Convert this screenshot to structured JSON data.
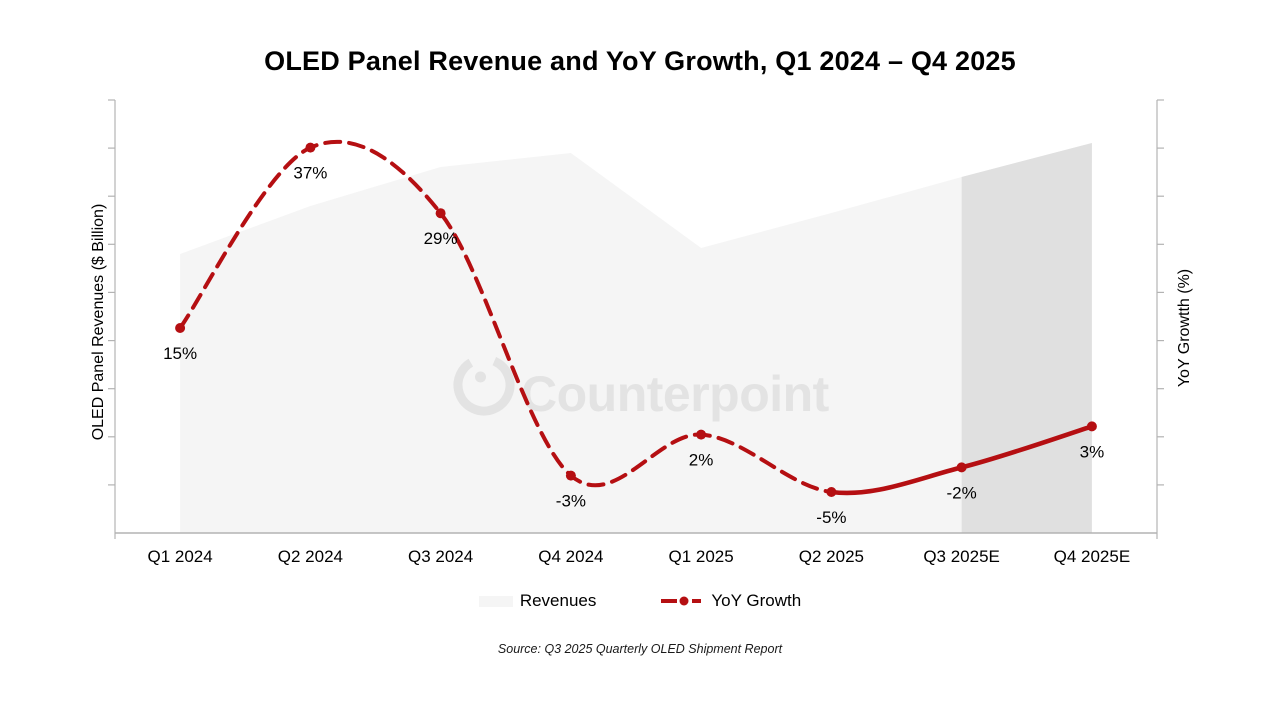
{
  "title": "OLED Panel Revenue and YoY Growth, Q1 2024 – Q4 2025",
  "watermark": {
    "text": "Counterpoint"
  },
  "source": "Source: Q3 2025 Quarterly OLED Shipment Report",
  "axes": {
    "left_title": "OLED Panel Revenues ($ Billion)",
    "right_title": "YoY Growtth (%)",
    "left_numeric_labels_visible": false,
    "right_numeric_labels_visible": false
  },
  "legend": {
    "revenues_label": "Revenues",
    "growth_label": "YoY Growth",
    "position": "bottom"
  },
  "colors": {
    "growth_line": "#b50f12",
    "revenue_area": "#f5f5f5",
    "revenue_area_forecast": "#e0e0e0",
    "axis": "#b3b3b3",
    "text": "#000000",
    "watermark": "#e3e3e3"
  },
  "chart_data": {
    "type": "combo: area (revenues) + smoothed line (YoY growth)",
    "categories": [
      "Q1 2024",
      "Q2 2024",
      "Q3 2024",
      "Q4 2024",
      "Q1 2025",
      "Q2 2025",
      "Q3 2025E",
      "Q4 2025E"
    ],
    "series": [
      {
        "name": "Revenues",
        "type": "area",
        "axis": "left",
        "values_relative": [
          27.9,
          32.7,
          36.6,
          38.0,
          28.5,
          32.0,
          35.6,
          39.0
        ],
        "forecast_from_index": 6,
        "note": "value axis shows tick marks but no numeric labels; values are relative levels read from the silhouette"
      },
      {
        "name": "YoY Growth",
        "type": "line",
        "axis": "right",
        "values": [
          15,
          37,
          29,
          -3,
          2,
          -5,
          -2,
          3
        ],
        "labels": [
          "15%",
          "37%",
          "29%",
          "-3%",
          "2%",
          "-5%",
          "-2%",
          "3%"
        ],
        "solid_from_index": 5,
        "smooth": true,
        "style_before": "dashed",
        "style_after": "solid"
      }
    ],
    "right_axis_range_estimate": [
      -10,
      43
    ],
    "gridlines": false,
    "legend_position": "bottom"
  }
}
